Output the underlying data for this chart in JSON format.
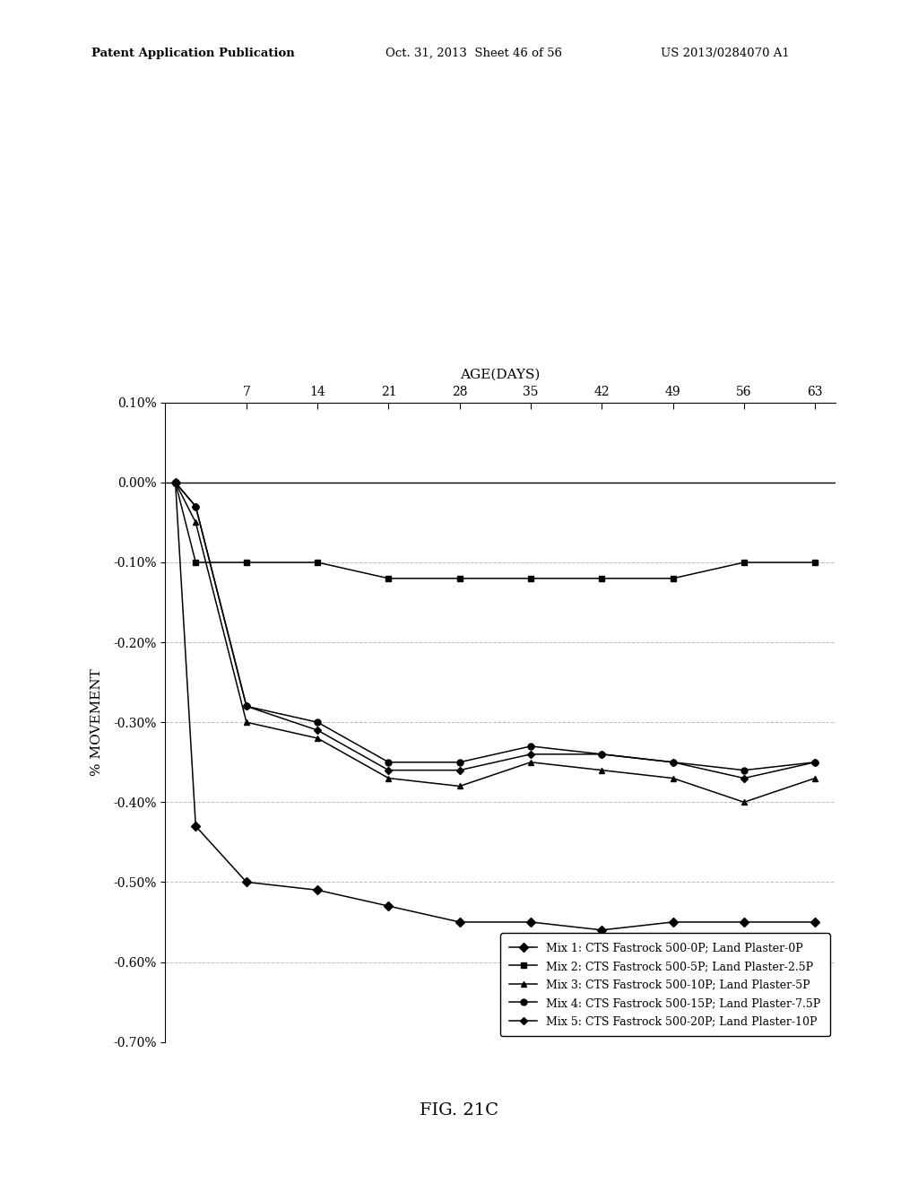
{
  "title": "FIG. 21C",
  "xlabel": "AGE(DAYS)",
  "ylabel": "% MOVEMENT",
  "header_left": "Patent Application Publication",
  "header_mid": "Oct. 31, 2013  Sheet 46 of 56",
  "header_right": "US 2013/0284070 A1",
  "x_ticks": [
    7,
    14,
    21,
    28,
    35,
    42,
    49,
    56,
    63
  ],
  "ylim": [
    -0.007,
    0.001
  ],
  "yticks": [
    0.001,
    0.0,
    -0.001,
    -0.002,
    -0.003,
    -0.004,
    -0.005,
    -0.006,
    -0.007
  ],
  "ytick_labels": [
    "0.10%",
    "0.00%",
    "-0.10%",
    "-0.20%",
    "-0.30%",
    "-0.40%",
    "-0.50%",
    "-0.60%",
    "-0.70%"
  ],
  "series": [
    {
      "label": "Mix 1: CTS Fastrock 500-0P; Land Plaster-0P",
      "marker": "D",
      "markersize": 5,
      "x": [
        0,
        2,
        7,
        14,
        21,
        28,
        35,
        42,
        49,
        56,
        63
      ],
      "y": [
        0.0,
        -0.0043,
        -0.005,
        -0.0051,
        -0.0053,
        -0.0055,
        -0.0055,
        -0.0056,
        -0.0055,
        -0.0055,
        -0.0055
      ]
    },
    {
      "label": "Mix 2: CTS Fastrock 500-5P; Land Plaster-2.5P",
      "marker": "s",
      "markersize": 5,
      "x": [
        0,
        2,
        7,
        14,
        21,
        28,
        35,
        42,
        49,
        56,
        63
      ],
      "y": [
        0.0,
        -0.001,
        -0.001,
        -0.001,
        -0.0012,
        -0.0012,
        -0.0012,
        -0.0012,
        -0.0012,
        -0.001,
        -0.001
      ]
    },
    {
      "label": "Mix 3: CTS Fastrock 500-10P; Land Plaster-5P",
      "marker": "^",
      "markersize": 5,
      "x": [
        0,
        2,
        7,
        14,
        21,
        28,
        35,
        42,
        49,
        56,
        63
      ],
      "y": [
        0.0,
        -0.0005,
        -0.003,
        -0.0032,
        -0.0037,
        -0.0038,
        -0.0035,
        -0.0036,
        -0.0037,
        -0.004,
        -0.0037
      ]
    },
    {
      "label": "Mix 4: CTS Fastrock 500-15P; Land Plaster-7.5P",
      "marker": "o",
      "markersize": 5,
      "x": [
        0,
        2,
        7,
        14,
        21,
        28,
        35,
        42,
        49,
        56,
        63
      ],
      "y": [
        0.0,
        -0.0003,
        -0.0028,
        -0.003,
        -0.0035,
        -0.0035,
        -0.0033,
        -0.0034,
        -0.0035,
        -0.0036,
        -0.0035
      ]
    },
    {
      "label": "Mix 5: CTS Fastrock 500-20P; Land Plaster-10P",
      "marker": "D",
      "markersize": 4,
      "x": [
        0,
        2,
        7,
        14,
        21,
        28,
        35,
        42,
        49,
        56,
        63
      ],
      "y": [
        0.0,
        -0.0003,
        -0.0028,
        -0.0031,
        -0.0036,
        -0.0036,
        -0.0034,
        -0.0034,
        -0.0035,
        -0.0037,
        -0.0035
      ]
    }
  ],
  "background_color": "#ffffff",
  "line_color": "#000000",
  "grid_color": "#bbbbbb",
  "fontsize": 10
}
